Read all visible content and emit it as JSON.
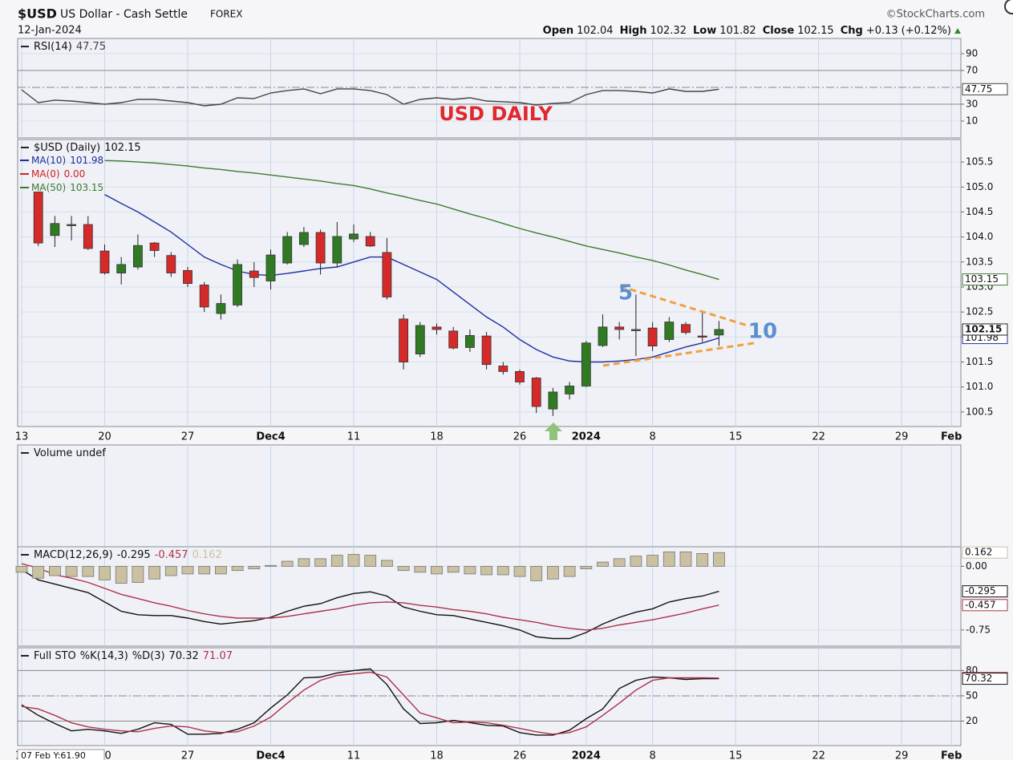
{
  "header": {
    "symbol": "$USD",
    "name": "US Dollar - Cash Settle",
    "exchange": "FOREX",
    "date": "12-Jan-2024",
    "brand": "©StockCharts.com",
    "quote": [
      {
        "label": "Open",
        "value": 102.04
      },
      {
        "label": "High",
        "value": 102.32
      },
      {
        "label": "Low",
        "value": 101.82
      },
      {
        "label": "Close",
        "value": 102.15
      }
    ],
    "chg_label": "Chg",
    "chg": {
      "value": 0.13,
      "label": "+0.13"
    },
    "chg_pct": "(+0.12%)"
  },
  "overlay": "07 Feb Y:61.90",
  "chart_data": [
    {
      "type": "line",
      "title": "RSI(14)",
      "annotation": "USD DAILY",
      "ylim": [
        -10,
        108
      ],
      "yticks": [
        10,
        30,
        70,
        90
      ],
      "reference_lines": [
        30,
        70
      ],
      "center_line": 50,
      "series": [
        {
          "color": "#444444",
          "last": 47.75,
          "values": [
            47.1,
            31.9,
            34.8,
            33.8,
            31.9,
            30.0,
            31.9,
            35.7,
            35.7,
            33.8,
            31.9,
            28.1,
            30.0,
            37.6,
            36.7,
            43.3,
            46.2,
            48.1,
            42.4,
            48.1,
            48.1,
            46.2,
            41.4,
            30.0,
            35.7,
            37.6,
            35.7,
            37.6,
            33.8,
            32.9,
            31.9,
            29.0,
            31.0,
            31.9,
            41.4,
            46.2,
            46.2,
            45.2,
            43.3,
            48.1,
            45.2,
            45.2,
            47.75,
            null,
            null,
            null,
            null,
            null,
            null,
            null,
            null,
            null,
            null,
            null,
            null,
            null,
            null
          ]
        }
      ]
    },
    {
      "type": "candlestick",
      "title": "$USD (Daily)",
      "last": 102.15,
      "annotations": [
        "5",
        "10"
      ],
      "up_color": "#2f7a22",
      "down_color": "#d42a2a",
      "categories": [
        "13",
        null,
        null,
        null,
        null,
        "20",
        null,
        null,
        null,
        null,
        "27",
        null,
        null,
        null,
        null,
        "Dec4",
        null,
        null,
        null,
        null,
        "11",
        null,
        null,
        null,
        null,
        "18",
        null,
        null,
        null,
        null,
        "26",
        null,
        null,
        null,
        "2024",
        null,
        null,
        null,
        "8",
        null,
        null,
        null,
        null,
        "15",
        null,
        null,
        null,
        null,
        "22",
        null,
        null,
        null,
        null,
        "29",
        null,
        null,
        "Feb"
      ],
      "ylim": [
        100.21,
        105.95
      ],
      "yticks": [
        100.5,
        {
          "value": 101,
          "label": "101.0"
        },
        101.5,
        {
          "value": 102,
          "label": "102.0"
        },
        102.5,
        {
          "value": 103,
          "label": "103.0"
        },
        103.5,
        {
          "value": 104,
          "label": "104.0"
        },
        104.5,
        {
          "value": 105,
          "label": "105.0"
        },
        105.5
      ],
      "open": [
        null,
        104.9,
        104.03,
        104.24,
        104.25,
        103.72,
        103.28,
        103.4,
        103.88,
        103.63,
        103.33,
        103.04,
        102.47,
        102.64,
        103.32,
        103.12,
        103.48,
        103.85,
        104.09,
        103.48,
        103.96,
        104.01,
        103.69,
        102.36,
        101.66,
        102.2,
        102.12,
        101.79,
        102.02,
        101.42,
        101.31,
        101.18,
        100.56,
        100.86,
        101.02,
        101.83,
        102.2,
        102.13,
        102.18,
        101.95,
        102.25,
        102.02,
        102.04,
        null,
        null,
        null,
        null,
        null,
        null,
        null,
        null,
        null,
        null,
        null,
        null,
        null,
        null
      ],
      "high": [
        null,
        104.9,
        104.42,
        104.42,
        104.42,
        103.85,
        103.6,
        104.05,
        103.9,
        103.7,
        103.4,
        103.1,
        102.85,
        103.55,
        103.5,
        103.75,
        104.1,
        104.2,
        104.15,
        104.3,
        104.25,
        104.1,
        103.98,
        102.45,
        102.3,
        102.27,
        102.2,
        102.15,
        102.1,
        101.5,
        101.35,
        101.2,
        100.98,
        101.1,
        101.92,
        102.45,
        102.3,
        102.85,
        102.3,
        102.4,
        102.3,
        102.5,
        102.32,
        null,
        null,
        null,
        null,
        null,
        null,
        null,
        null,
        null,
        null,
        null,
        null,
        null,
        null
      ],
      "low": [
        null,
        103.82,
        103.8,
        103.93,
        103.74,
        103.25,
        103.05,
        103.35,
        103.6,
        103.2,
        103.0,
        102.5,
        102.35,
        102.6,
        103.0,
        102.95,
        103.45,
        103.8,
        103.25,
        103.4,
        103.9,
        103.8,
        102.75,
        101.35,
        101.6,
        102.05,
        101.75,
        101.7,
        101.35,
        101.25,
        101.05,
        100.48,
        100.42,
        100.75,
        101.0,
        101.8,
        101.95,
        101.62,
        101.72,
        101.9,
        102.05,
        101.9,
        101.82,
        null,
        null,
        null,
        null,
        null,
        null,
        null,
        null,
        null,
        null,
        null,
        null,
        null,
        null
      ],
      "close": [
        null,
        103.88,
        104.27,
        104.25,
        103.77,
        103.28,
        103.45,
        103.83,
        103.73,
        103.28,
        103.07,
        102.6,
        102.67,
        103.45,
        103.19,
        103.64,
        104.01,
        104.09,
        103.48,
        104.01,
        104.06,
        103.82,
        102.8,
        101.5,
        102.23,
        102.15,
        101.78,
        102.03,
        101.45,
        101.31,
        101.1,
        100.61,
        100.9,
        101.02,
        101.88,
        102.2,
        102.15,
        102.15,
        101.82,
        102.3,
        102.09,
        102.01,
        102.15,
        null,
        null,
        null,
        null,
        null,
        null,
        null,
        null,
        null,
        null,
        null,
        null,
        null,
        null
      ],
      "series": [
        {
          "name": "MA(10)",
          "color": "#1f2f9e",
          "last": 101.98,
          "values": [
            null,
            null,
            null,
            null,
            null,
            104.85,
            104.67,
            104.5,
            104.3,
            104.1,
            103.85,
            103.6,
            103.45,
            103.32,
            103.25,
            103.23,
            103.27,
            103.32,
            103.37,
            103.4,
            103.5,
            103.6,
            103.6,
            103.45,
            103.3,
            103.15,
            102.9,
            102.65,
            102.4,
            102.2,
            101.95,
            101.75,
            101.6,
            101.52,
            101.5,
            101.5,
            101.52,
            101.55,
            101.6,
            101.7,
            101.8,
            101.88,
            101.98,
            null,
            null,
            null,
            null,
            null,
            null,
            null,
            null,
            null,
            null,
            null,
            null,
            null,
            null
          ]
        },
        {
          "name": "MA(0)",
          "color": "#d02020",
          "last": {
            "value": 0,
            "label": "0.00"
          }
        },
        {
          "name": "MA(50)",
          "color": "#3d7a2e",
          "last": 103.15,
          "values": [
            null,
            null,
            null,
            null,
            null,
            105.53,
            105.52,
            105.5,
            105.48,
            105.45,
            105.42,
            105.38,
            105.35,
            105.31,
            105.28,
            105.24,
            105.2,
            105.16,
            105.12,
            105.07,
            105.03,
            104.96,
            104.88,
            104.81,
            104.73,
            104.66,
            104.56,
            104.46,
            104.37,
            104.27,
            104.17,
            104.08,
            104.0,
            103.91,
            103.82,
            103.75,
            103.68,
            103.6,
            103.53,
            103.44,
            103.34,
            103.25,
            103.15,
            null,
            null,
            null,
            null,
            null,
            null,
            null,
            null,
            null,
            null,
            null,
            null,
            null,
            null
          ]
        }
      ]
    },
    {
      "type": "bar",
      "title": "Volume undef"
    },
    {
      "type": "combo",
      "title": "MACD(12,26,9)",
      "ylim": [
        -0.94,
        0.23
      ],
      "yticks": [
        {
          "value": 0,
          "label": "0.00"
        },
        -0.75
      ],
      "series": [
        {
          "type": "line",
          "color": "#111111",
          "last": -0.295,
          "values": [
            -0.04,
            -0.16,
            -0.21,
            -0.26,
            -0.31,
            -0.42,
            -0.53,
            -0.57,
            -0.58,
            -0.58,
            -0.61,
            -0.65,
            -0.68,
            -0.66,
            -0.64,
            -0.6,
            -0.53,
            -0.47,
            -0.44,
            -0.37,
            -0.32,
            -0.3,
            -0.35,
            -0.48,
            -0.53,
            -0.57,
            -0.58,
            -0.62,
            -0.66,
            -0.7,
            -0.75,
            -0.83,
            -0.85,
            -0.85,
            -0.78,
            -0.68,
            -0.6,
            -0.54,
            -0.5,
            -0.42,
            -0.38,
            -0.35,
            -0.295,
            null,
            null,
            null,
            null,
            null,
            null,
            null,
            null,
            null,
            null,
            null,
            null,
            null,
            null
          ]
        },
        {
          "type": "line",
          "color": "#b0304a",
          "last": -0.457,
          "values": [
            0.03,
            -0.02,
            -0.1,
            -0.14,
            -0.19,
            -0.26,
            -0.33,
            -0.38,
            -0.43,
            -0.47,
            -0.52,
            -0.56,
            -0.59,
            -0.61,
            -0.61,
            -0.61,
            -0.59,
            -0.56,
            -0.53,
            -0.5,
            -0.46,
            -0.43,
            -0.42,
            -0.43,
            -0.46,
            -0.48,
            -0.51,
            -0.53,
            -0.56,
            -0.6,
            -0.63,
            -0.66,
            -0.7,
            -0.73,
            -0.75,
            -0.73,
            -0.69,
            -0.66,
            -0.63,
            -0.59,
            -0.55,
            -0.5,
            -0.457,
            null,
            null,
            null,
            null,
            null,
            null,
            null,
            null,
            null,
            null,
            null,
            null,
            null,
            null
          ]
        },
        {
          "type": "bar",
          "color": "#c9c1a0",
          "last": 0.162,
          "values": [
            -0.07,
            -0.14,
            -0.11,
            -0.12,
            -0.12,
            -0.16,
            -0.2,
            -0.19,
            -0.15,
            -0.11,
            -0.09,
            -0.09,
            -0.09,
            -0.05,
            -0.03,
            0.01,
            0.06,
            0.09,
            0.09,
            0.13,
            0.14,
            0.13,
            0.07,
            -0.05,
            -0.07,
            -0.09,
            -0.07,
            -0.09,
            -0.1,
            -0.1,
            -0.12,
            -0.17,
            -0.15,
            -0.12,
            -0.03,
            0.05,
            0.09,
            0.12,
            0.13,
            0.17,
            0.17,
            0.15,
            0.162,
            null,
            null,
            null,
            null,
            null,
            null,
            null,
            null,
            null,
            null,
            null,
            null,
            null,
            null
          ]
        }
      ]
    },
    {
      "type": "line",
      "title": "Full STO",
      "categories": [
        "13",
        null,
        null,
        null,
        null,
        "20",
        null,
        null,
        null,
        null,
        "27",
        null,
        null,
        null,
        null,
        "Dec4",
        null,
        null,
        null,
        null,
        "11",
        null,
        null,
        null,
        null,
        "18",
        null,
        null,
        null,
        null,
        "26",
        null,
        null,
        null,
        "2024",
        null,
        null,
        null,
        "8",
        null,
        null,
        null,
        null,
        "15",
        null,
        null,
        null,
        null,
        "22",
        null,
        null,
        null,
        null,
        "29",
        null,
        null,
        "Feb"
      ],
      "ylim": [
        -9,
        107
      ],
      "yticks": [
        20,
        50,
        80
      ],
      "reference_lines": [
        20,
        80
      ],
      "center_line": 50,
      "series": [
        {
          "name": "%K(14,3)",
          "color": "#111111",
          "last": 70.32,
          "values": [
            39.3,
            26.8,
            17.1,
            8.4,
            10.3,
            8.4,
            5.5,
            10.3,
            18.0,
            16.1,
            4.5,
            4.5,
            5.5,
            10.3,
            18.0,
            35.5,
            51.0,
            71.3,
            72.3,
            77.1,
            80.0,
            81.9,
            63.5,
            34.5,
            17.1,
            18.0,
            20.9,
            18.2,
            15.1,
            14.2,
            6.4,
            3.5,
            3.5,
            9.3,
            22.9,
            34.5,
            58.7,
            68.4,
            72.3,
            71.3,
            69.4,
            70.3,
            70.32,
            null,
            null,
            null,
            null,
            null,
            null,
            null,
            null,
            null,
            null,
            null,
            null,
            null,
            null
          ]
        },
        {
          "name": "%D(3)",
          "color": "#b0304a",
          "last": 71.07,
          "values": [
            37.4,
            34.5,
            26.8,
            18.0,
            13.2,
            10.3,
            8.4,
            7.4,
            11.3,
            14.2,
            13.2,
            8.4,
            6.4,
            7.4,
            14.2,
            24.8,
            41.3,
            56.8,
            68.4,
            74.2,
            76.1,
            78.1,
            72.3,
            51.0,
            29.7,
            23.9,
            18.0,
            19.0,
            18.0,
            15.1,
            11.3,
            7.4,
            4.5,
            6.4,
            13.2,
            26.8,
            41.3,
            56.8,
            68.4,
            71.3,
            71.3,
            71.3,
            71.07,
            null,
            null,
            null,
            null,
            null,
            null,
            null,
            null,
            null,
            null,
            null,
            null,
            null,
            null
          ]
        }
      ]
    }
  ]
}
